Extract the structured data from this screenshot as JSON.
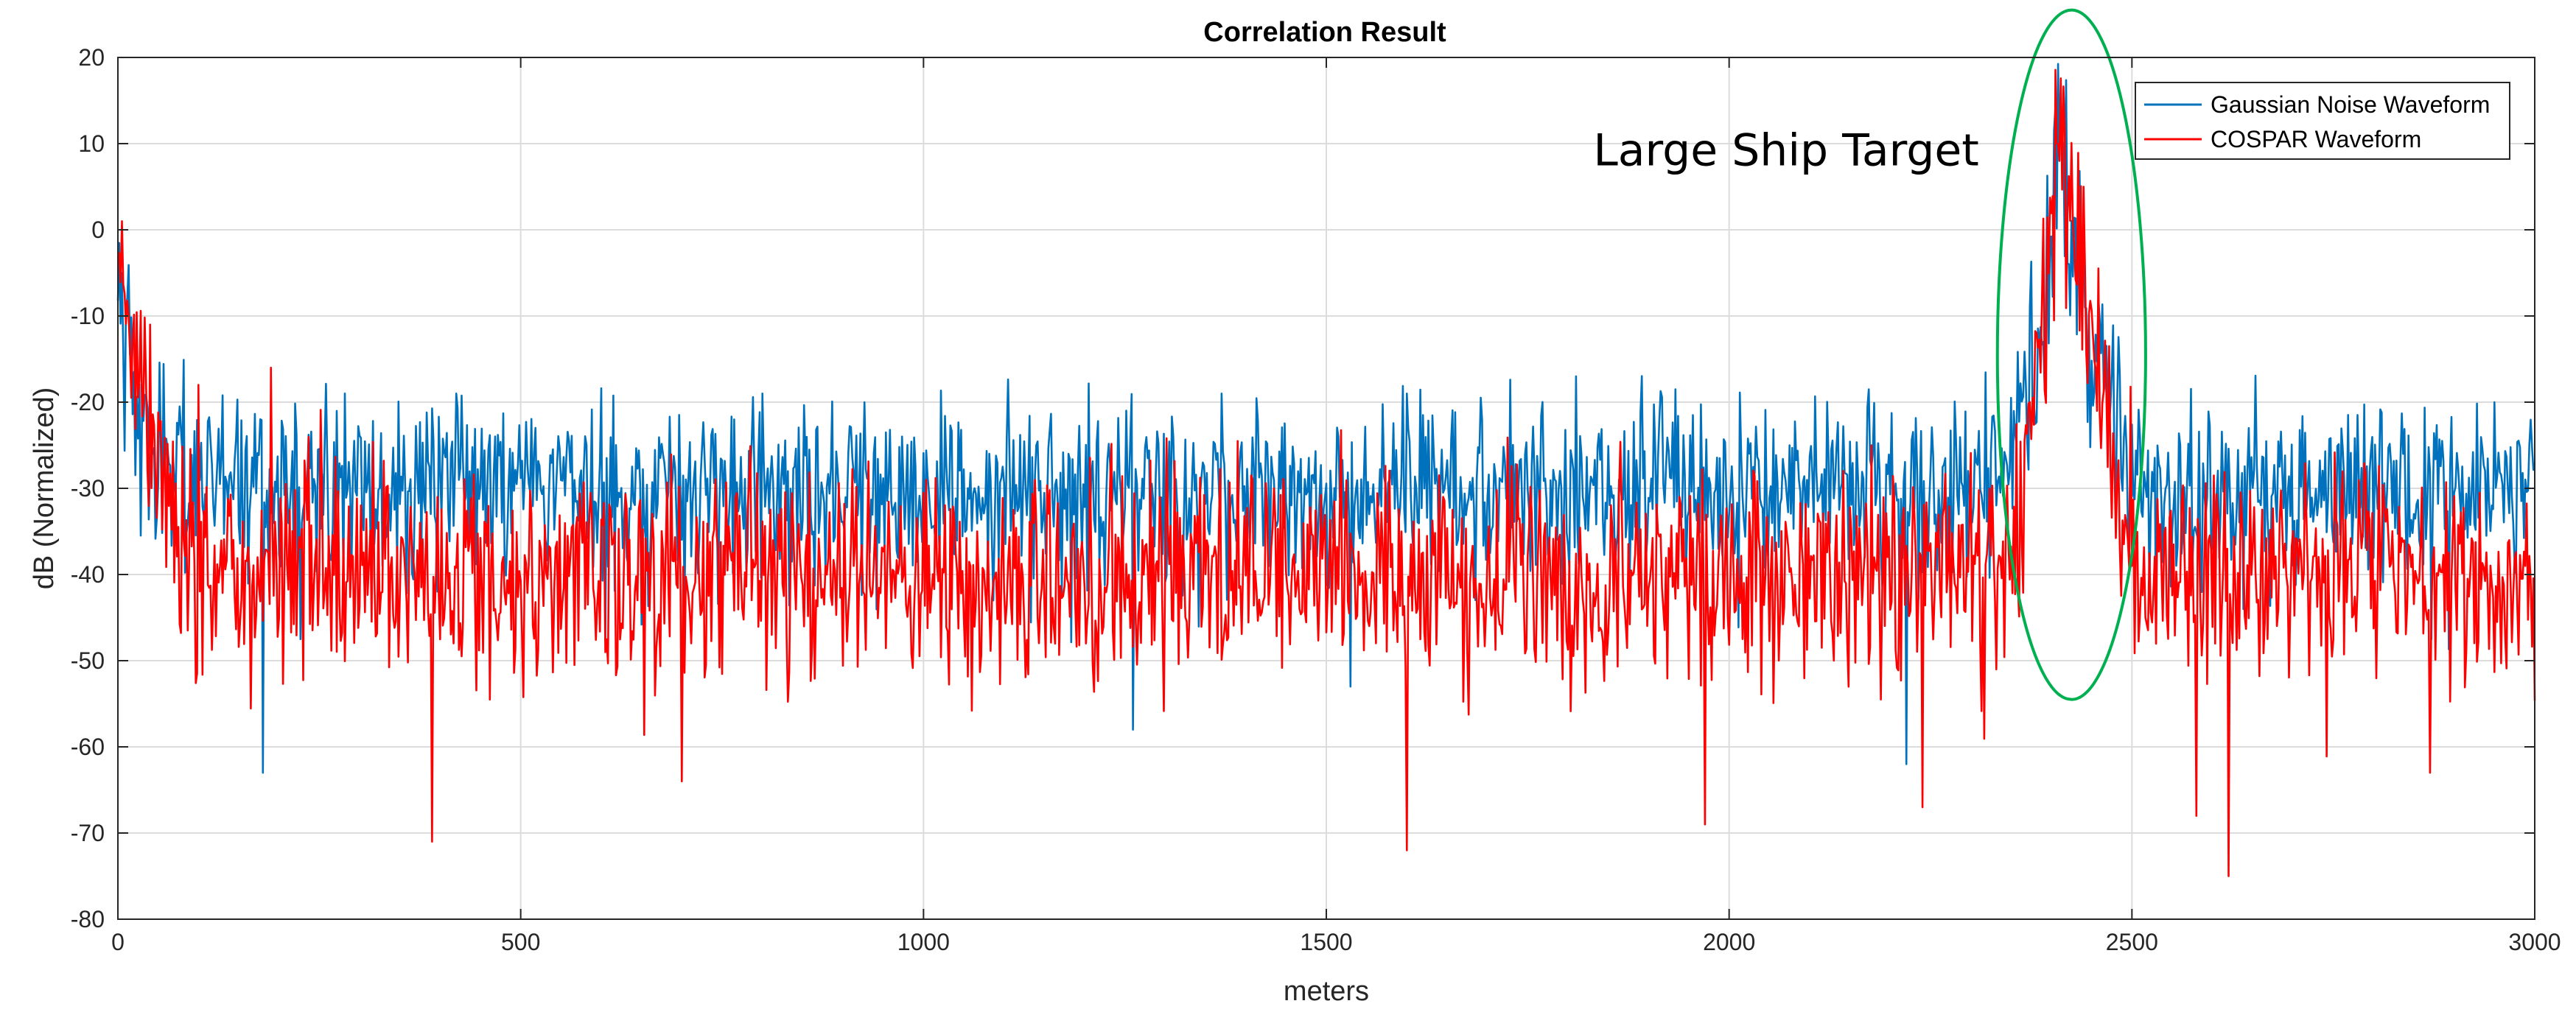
{
  "chart_data": {
    "type": "line",
    "title": "Correlation Result",
    "xlabel": "meters",
    "ylabel": "dB (Normalized)",
    "xlim": [
      0,
      3000
    ],
    "ylim": [
      -80,
      20
    ],
    "xticks": [
      "0",
      "500",
      "1000",
      "1500",
      "2000",
      "2500",
      "3000"
    ],
    "yticks": [
      "20",
      "10",
      "0",
      "-10",
      "-20",
      "-30",
      "-40",
      "-50",
      "-60",
      "-70",
      "-80"
    ],
    "grid": true,
    "legend_position": "top-right",
    "series": [
      {
        "name": "Gaussian Noise Waveform",
        "color": "#0072BD",
        "profile": [
          [
            0,
            0
          ],
          [
            5,
            -5
          ],
          [
            15,
            -14
          ],
          [
            30,
            -24
          ],
          [
            60,
            -29
          ],
          [
            180,
            -30
          ],
          [
            2300,
            -30
          ],
          [
            2360,
            -26
          ],
          [
            2390,
            -10
          ],
          [
            2410,
            8
          ],
          [
            2430,
            -2
          ],
          [
            2450,
            -12
          ],
          [
            2480,
            -22
          ],
          [
            2510,
            -30
          ],
          [
            3000,
            -30
          ]
        ],
        "noise_amplitude": 5,
        "peaks": [
          [
            5,
            -5
          ],
          [
            420,
            -19
          ],
          [
            800,
            -19
          ],
          [
            1370,
            -19
          ],
          [
            1600,
            -19
          ],
          [
            1810,
            -17
          ],
          [
            2410,
            8
          ],
          [
            2440,
            4
          ],
          [
            2950,
            -20
          ]
        ],
        "dips": [
          [
            180,
            -63
          ],
          [
            1260,
            -58
          ],
          [
            1530,
            -53
          ],
          [
            2220,
            -62
          ],
          [
            2530,
            -47
          ]
        ]
      },
      {
        "name": "COSPAR Waveform",
        "color": "#FF0000",
        "profile": [
          [
            0,
            1
          ],
          [
            10,
            -9
          ],
          [
            40,
            -22
          ],
          [
            70,
            -36
          ],
          [
            150,
            -40
          ],
          [
            2300,
            -40
          ],
          [
            2360,
            -34
          ],
          [
            2390,
            -12
          ],
          [
            2410,
            8
          ],
          [
            2430,
            0
          ],
          [
            2450,
            -12
          ],
          [
            2480,
            -28
          ],
          [
            2510,
            -40
          ],
          [
            3000,
            -40
          ]
        ],
        "noise_amplitude": 6,
        "peaks": [
          [
            5,
            1
          ],
          [
            40,
            -11
          ],
          [
            100,
            -18
          ],
          [
            190,
            -16
          ],
          [
            2410,
            8
          ],
          [
            2440,
            5
          ]
        ],
        "dips": [
          [
            390,
            -71
          ],
          [
            700,
            -64
          ],
          [
            1600,
            -72
          ],
          [
            1970,
            -69
          ],
          [
            2240,
            -67
          ],
          [
            2580,
            -68
          ],
          [
            2620,
            -75
          ],
          [
            2870,
            -63
          ]
        ]
      }
    ],
    "annotations": [
      {
        "text": "Large Ship Target",
        "x": 1900,
        "y": 7.5,
        "anchor": "start"
      }
    ],
    "highlight_ellipse": {
      "center_x": 2425,
      "center_y": -14.5,
      "radius_x": 92,
      "radius_y": 40,
      "color": "#00B050"
    }
  }
}
